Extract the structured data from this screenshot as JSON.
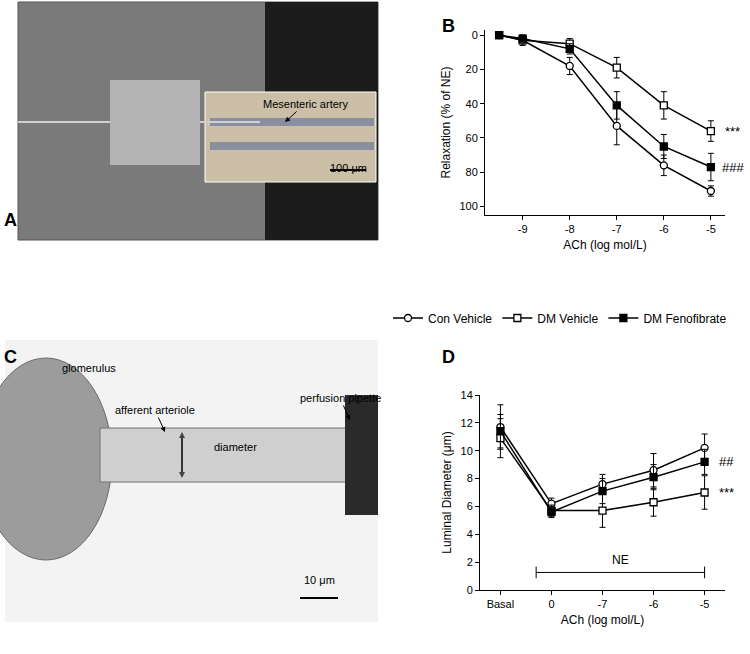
{
  "chart_data": [
    {
      "panel": "B",
      "type": "line",
      "x": [
        -9.5,
        -9,
        -8,
        -7,
        -6,
        -5
      ],
      "xlabel": "ACh (log mol/L)",
      "ylabel": "Relaxation (% of NE)",
      "xlim": [
        -9.8,
        -4.7
      ],
      "xticks": [
        -9,
        -8,
        -7,
        -6,
        -5
      ],
      "ylim": [
        105,
        -3
      ],
      "yticks": [
        0,
        20,
        40,
        60,
        80,
        100
      ],
      "grid": false,
      "legend": "center",
      "series": [
        {
          "name": "Con Vehicle",
          "color": "#000000",
          "marker": "circle-open",
          "values": [
            0,
            3,
            18,
            53,
            76,
            91
          ],
          "errors": [
            0,
            3,
            5,
            11,
            6,
            3
          ]
        },
        {
          "name": "DM Vehicle",
          "color": "#000000",
          "marker": "square-open",
          "values": [
            0,
            3,
            5,
            19,
            41,
            56
          ],
          "errors": [
            0,
            2,
            3,
            6,
            8,
            6
          ],
          "significance": "***"
        },
        {
          "name": "DM Fenofibrate",
          "color": "#000000",
          "marker": "square",
          "values": [
            0,
            2,
            8,
            41,
            65,
            77
          ],
          "errors": [
            0,
            2,
            3,
            8,
            7,
            8
          ],
          "significance": "###"
        }
      ]
    },
    {
      "panel": "D",
      "type": "line",
      "categories": [
        "Basal",
        "0",
        "-7",
        "-6",
        "-5"
      ],
      "xlabel": "ACh (log mol/L)",
      "ylabel": "Luminal Diameter (μm)",
      "ylim": [
        0,
        14
      ],
      "yticks": [
        0,
        2,
        4,
        6,
        8,
        10,
        12,
        14
      ],
      "grid": false,
      "span": {
        "label": "NE",
        "from": "0",
        "to": "-5"
      },
      "series": [
        {
          "name": "Con Vehicle",
          "color": "#000000",
          "marker": "circle-open",
          "values": [
            11.7,
            6.2,
            7.6,
            8.6,
            10.2
          ],
          "errors": [
            1.6,
            0.4,
            0.7,
            1.2,
            1.0
          ]
        },
        {
          "name": "DM Vehicle",
          "color": "#000000",
          "marker": "square-open",
          "values": [
            10.9,
            5.7,
            5.7,
            6.3,
            7.0
          ],
          "errors": [
            1.4,
            0.4,
            1.2,
            1.0,
            1.2
          ],
          "significance": "***"
        },
        {
          "name": "DM Fenofibrate",
          "color": "#000000",
          "marker": "square",
          "values": [
            11.4,
            5.6,
            7.1,
            8.1,
            9.2
          ],
          "errors": [
            1.2,
            0.4,
            0.9,
            0.9,
            0.9
          ],
          "significance": "##"
        }
      ]
    }
  ],
  "images": [
    {
      "panel": "A",
      "labels": [
        "Mesenteric artery"
      ],
      "scale_bar": "100 μm"
    },
    {
      "panel": "C",
      "labels": [
        "glomerulus",
        "afferent arteriole",
        "diameter",
        "perfusion pipette"
      ],
      "scale_bar": "10 μm"
    }
  ]
}
